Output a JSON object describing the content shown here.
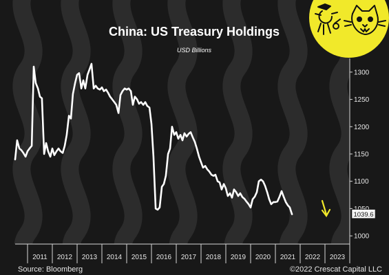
{
  "chart_data": {
    "type": "line",
    "title": "China: US Treasury Holdings",
    "subtitle": "USD Billions",
    "xlabel": "",
    "ylabel": "",
    "x_tick_labels": [
      "2011",
      "2012",
      "2013",
      "2014",
      "2015",
      "2016",
      "2017",
      "2018",
      "2019",
      "2020",
      "2021",
      "2022",
      "2023"
    ],
    "y_tick_labels": [
      "1000",
      "1050",
      "1100",
      "1150",
      "1200",
      "1250",
      "1300"
    ],
    "xlim": [
      2010.0,
      2023.5
    ],
    "ylim": [
      985,
      1325
    ],
    "grid": false,
    "last_value_label": "1039.6",
    "annotation": "down-arrow",
    "series": [
      {
        "values": [
          [
            2010.0,
            1140
          ],
          [
            2010.08,
            1175
          ],
          [
            2010.17,
            1160
          ],
          [
            2010.25,
            1157
          ],
          [
            2010.33,
            1152
          ],
          [
            2010.42,
            1145
          ],
          [
            2010.5,
            1155
          ],
          [
            2010.58,
            1160
          ],
          [
            2010.67,
            1165
          ],
          [
            2010.75,
            1310
          ],
          [
            2010.83,
            1280
          ],
          [
            2010.92,
            1270
          ],
          [
            2011.0,
            1255
          ],
          [
            2011.08,
            1252
          ],
          [
            2011.17,
            1150
          ],
          [
            2011.25,
            1170
          ],
          [
            2011.33,
            1155
          ],
          [
            2011.42,
            1145
          ],
          [
            2011.5,
            1160
          ],
          [
            2011.58,
            1148
          ],
          [
            2011.67,
            1155
          ],
          [
            2011.75,
            1160
          ],
          [
            2011.83,
            1155
          ],
          [
            2011.92,
            1152
          ],
          [
            2012.0,
            1165
          ],
          [
            2012.08,
            1185
          ],
          [
            2012.17,
            1220
          ],
          [
            2012.25,
            1215
          ],
          [
            2012.33,
            1260
          ],
          [
            2012.42,
            1280
          ],
          [
            2012.5,
            1295
          ],
          [
            2012.58,
            1298
          ],
          [
            2012.67,
            1270
          ],
          [
            2012.75,
            1285
          ],
          [
            2012.83,
            1270
          ],
          [
            2012.92,
            1295
          ],
          [
            2013.0,
            1305
          ],
          [
            2013.08,
            1315
          ],
          [
            2013.17,
            1270
          ],
          [
            2013.25,
            1275
          ],
          [
            2013.33,
            1270
          ],
          [
            2013.42,
            1268
          ],
          [
            2013.5,
            1272
          ],
          [
            2013.58,
            1265
          ],
          [
            2013.67,
            1268
          ],
          [
            2013.75,
            1262
          ],
          [
            2013.83,
            1255
          ],
          [
            2013.92,
            1250
          ],
          [
            2014.0,
            1245
          ],
          [
            2014.08,
            1240
          ],
          [
            2014.17,
            1225
          ],
          [
            2014.25,
            1258
          ],
          [
            2014.33,
            1265
          ],
          [
            2014.42,
            1270
          ],
          [
            2014.5,
            1268
          ],
          [
            2014.58,
            1270
          ],
          [
            2014.67,
            1265
          ],
          [
            2014.75,
            1240
          ],
          [
            2014.83,
            1255
          ],
          [
            2014.92,
            1250
          ],
          [
            2015.0,
            1242
          ],
          [
            2015.08,
            1245
          ],
          [
            2015.17,
            1240
          ],
          [
            2015.25,
            1245
          ],
          [
            2015.33,
            1238
          ],
          [
            2015.42,
            1235
          ],
          [
            2015.5,
            1205
          ],
          [
            2015.58,
            1145
          ],
          [
            2015.67,
            1050
          ],
          [
            2015.75,
            1048
          ],
          [
            2015.83,
            1052
          ],
          [
            2015.92,
            1090
          ],
          [
            2016.0,
            1095
          ],
          [
            2016.08,
            1110
          ],
          [
            2016.17,
            1150
          ],
          [
            2016.25,
            1160
          ],
          [
            2016.33,
            1200
          ],
          [
            2016.42,
            1185
          ],
          [
            2016.5,
            1190
          ],
          [
            2016.58,
            1178
          ],
          [
            2016.67,
            1185
          ],
          [
            2016.75,
            1175
          ],
          [
            2016.83,
            1188
          ],
          [
            2016.92,
            1182
          ],
          [
            2017.0,
            1187
          ],
          [
            2017.08,
            1190
          ],
          [
            2017.17,
            1180
          ],
          [
            2017.25,
            1172
          ],
          [
            2017.33,
            1160
          ],
          [
            2017.42,
            1145
          ],
          [
            2017.5,
            1135
          ],
          [
            2017.58,
            1125
          ],
          [
            2017.67,
            1128
          ],
          [
            2017.75,
            1122
          ],
          [
            2017.83,
            1118
          ],
          [
            2017.92,
            1112
          ],
          [
            2018.0,
            1110
          ],
          [
            2018.08,
            1112
          ],
          [
            2018.17,
            1100
          ],
          [
            2018.25,
            1098
          ],
          [
            2018.33,
            1085
          ],
          [
            2018.42,
            1095
          ],
          [
            2018.5,
            1087
          ],
          [
            2018.58,
            1073
          ],
          [
            2018.67,
            1078
          ],
          [
            2018.75,
            1070
          ],
          [
            2018.83,
            1085
          ],
          [
            2018.92,
            1080
          ],
          [
            2019.0,
            1073
          ],
          [
            2019.08,
            1078
          ],
          [
            2019.17,
            1071
          ],
          [
            2019.25,
            1068
          ],
          [
            2019.33,
            1063
          ],
          [
            2019.42,
            1058
          ],
          [
            2019.5,
            1052
          ],
          [
            2019.58,
            1067
          ],
          [
            2019.67,
            1072
          ],
          [
            2019.75,
            1080
          ],
          [
            2019.83,
            1100
          ],
          [
            2019.92,
            1103
          ],
          [
            2020.0,
            1100
          ],
          [
            2020.08,
            1092
          ],
          [
            2020.17,
            1080
          ],
          [
            2020.25,
            1067
          ],
          [
            2020.33,
            1058
          ],
          [
            2020.42,
            1062
          ],
          [
            2020.5,
            1062
          ],
          [
            2020.58,
            1063
          ],
          [
            2020.67,
            1072
          ],
          [
            2020.75,
            1082
          ],
          [
            2020.83,
            1072
          ],
          [
            2020.92,
            1062
          ],
          [
            2021.0,
            1056
          ],
          [
            2021.08,
            1052
          ],
          [
            2021.17,
            1039.6
          ]
        ]
      }
    ]
  }
}
